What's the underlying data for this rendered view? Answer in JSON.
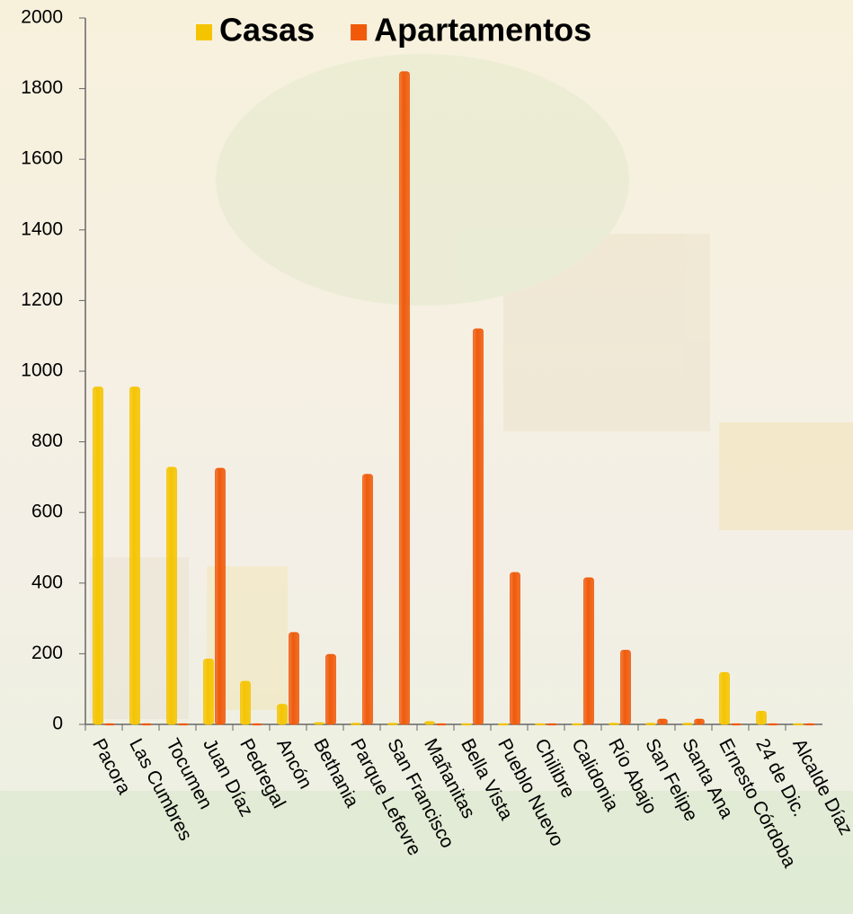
{
  "chart_data": {
    "type": "bar",
    "categories": [
      "Pacora",
      "Las Cumbres",
      "Tocumen",
      "Juan Díaz",
      "Pedregal",
      "Ancón",
      "Bethania",
      "Parque Lefevre",
      "San Francisco",
      "Mañanitas",
      "Bella Vista",
      "Pueblo Nuevo",
      "Chilibre",
      "Calidonia",
      "Río Abajo",
      "San Felipe",
      "Santa Ana",
      "Ernesto Córdoba",
      "24 de Dic.",
      "Alcalde Díaz"
    ],
    "series": [
      {
        "name": "Casas",
        "color": "#f5c400",
        "values": [
          955,
          955,
          728,
          185,
          122,
          57,
          5,
          3,
          3,
          8,
          2,
          2,
          2,
          2,
          3,
          3,
          3,
          147,
          37,
          2
        ]
      },
      {
        "name": "Apartamentos",
        "color": "#f05a0a",
        "values": [
          2,
          2,
          2,
          725,
          2,
          260,
          198,
          708,
          1848,
          2,
          1120,
          430,
          2,
          415,
          210,
          15,
          15,
          2,
          2,
          2
        ]
      }
    ],
    "ylim": [
      0,
      2000
    ],
    "yticks": [
      0,
      200,
      400,
      600,
      800,
      1000,
      1200,
      1400,
      1600,
      1800,
      2000
    ],
    "legend": "top"
  }
}
